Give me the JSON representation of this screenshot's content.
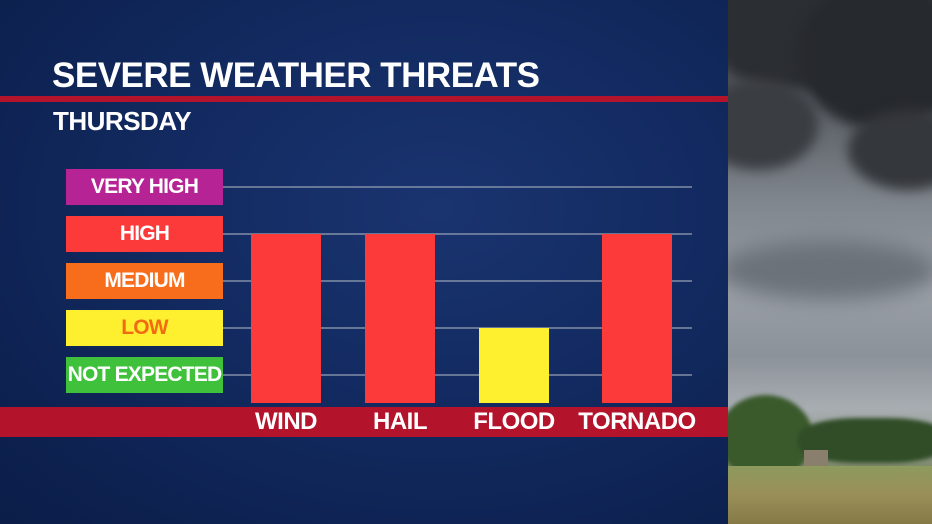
{
  "header": {
    "title": "SEVERE WEATHER THREATS",
    "subtitle": "THURSDAY"
  },
  "chart_data": {
    "type": "bar",
    "title": "SEVERE WEATHER THREATS",
    "subtitle": "THURSDAY",
    "categories": [
      "WIND",
      "HAIL",
      "FLOOD",
      "TORNADO"
    ],
    "levels": [
      "NOT EXPECTED",
      "LOW",
      "MEDIUM",
      "HIGH",
      "VERY HIGH"
    ],
    "values": [
      "HIGH",
      "HIGH",
      "LOW",
      "HIGH"
    ],
    "level_colors": {
      "NOT EXPECTED": "#3fc13c",
      "LOW": "#fff02f",
      "MEDIUM": "#f86d1c",
      "HIGH": "#fc3a3a",
      "VERY HIGH": "#b52394"
    },
    "level_text_colors": {
      "NOT EXPECTED": "#ffffff",
      "LOW": "#f26b12",
      "MEDIUM": "#ffffff",
      "HIGH": "#ffffff",
      "VERY HIGH": "#ffffff"
    },
    "grid": true,
    "legend": "left"
  },
  "colors": {
    "accent_red": "#b3132b",
    "background": "#122a60"
  }
}
